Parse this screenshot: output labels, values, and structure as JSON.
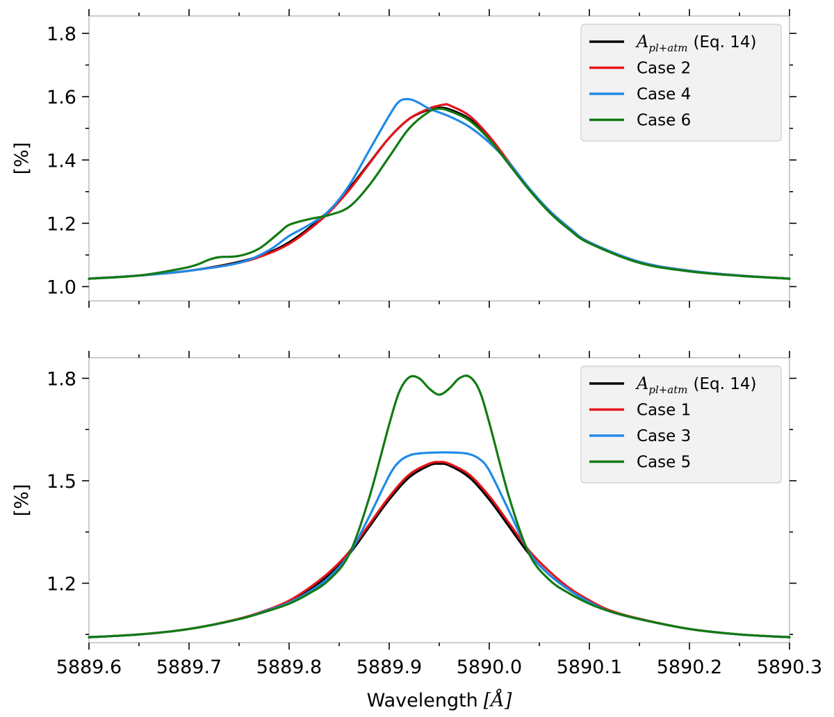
{
  "chart_data": [
    {
      "type": "line",
      "title": "",
      "xlabel": "",
      "ylabel": "[%]",
      "xlim": [
        5889.6,
        5890.3
      ],
      "ylim": [
        0.955,
        1.855
      ],
      "yticks": [
        1.0,
        1.2,
        1.4,
        1.6,
        1.8
      ],
      "ytick_labels": [
        "1.0",
        "1.2",
        "1.4",
        "1.6",
        "1.8"
      ],
      "legend": {
        "placement": "top-right"
      },
      "series": [
        {
          "name": "Eq. 14",
          "legend_math": "A",
          "legend_math_sub": "pl+atm",
          "legend_suffix": "(Eq. 14)",
          "color": "#000000",
          "x": [
            5889.6,
            5889.65,
            5889.7,
            5889.75,
            5889.78,
            5889.8,
            5889.82,
            5889.84,
            5889.86,
            5889.88,
            5889.9,
            5889.92,
            5889.94,
            5889.95,
            5889.96,
            5889.98,
            5890.0,
            5890.02,
            5890.04,
            5890.06,
            5890.08,
            5890.1,
            5890.15,
            5890.2,
            5890.25,
            5890.3
          ],
          "y": [
            1.025,
            1.035,
            1.05,
            1.078,
            1.108,
            1.14,
            1.185,
            1.24,
            1.31,
            1.39,
            1.47,
            1.53,
            1.56,
            1.565,
            1.56,
            1.53,
            1.47,
            1.39,
            1.31,
            1.24,
            1.185,
            1.14,
            1.078,
            1.05,
            1.035,
            1.025
          ]
        },
        {
          "name": "Case 2",
          "color": "#e6151a",
          "x": [
            5889.6,
            5889.65,
            5889.7,
            5889.75,
            5889.78,
            5889.8,
            5889.82,
            5889.84,
            5889.86,
            5889.88,
            5889.9,
            5889.92,
            5889.94,
            5889.95,
            5889.955,
            5889.96,
            5889.98,
            5890.0,
            5890.02,
            5890.04,
            5890.06,
            5890.08,
            5890.1,
            5890.15,
            5890.2,
            5890.25,
            5890.3
          ],
          "y": [
            1.025,
            1.035,
            1.05,
            1.075,
            1.105,
            1.135,
            1.18,
            1.235,
            1.305,
            1.388,
            1.47,
            1.53,
            1.563,
            1.572,
            1.575,
            1.573,
            1.54,
            1.475,
            1.392,
            1.31,
            1.24,
            1.185,
            1.14,
            1.078,
            1.05,
            1.035,
            1.025
          ]
        },
        {
          "name": "Case 4",
          "color": "#1f8be8",
          "x": [
            5889.6,
            5889.65,
            5889.7,
            5889.75,
            5889.78,
            5889.8,
            5889.82,
            5889.84,
            5889.86,
            5889.88,
            5889.9,
            5889.91,
            5889.92,
            5889.93,
            5889.94,
            5889.96,
            5889.98,
            5890.0,
            5890.02,
            5890.04,
            5890.06,
            5890.08,
            5890.1,
            5890.15,
            5890.2,
            5890.25,
            5890.3
          ],
          "y": [
            1.025,
            1.035,
            1.05,
            1.075,
            1.115,
            1.16,
            1.195,
            1.24,
            1.32,
            1.43,
            1.54,
            1.585,
            1.592,
            1.58,
            1.562,
            1.538,
            1.505,
            1.455,
            1.39,
            1.31,
            1.24,
            1.185,
            1.14,
            1.078,
            1.05,
            1.035,
            1.025
          ]
        },
        {
          "name": "Case 6",
          "color": "#127a12",
          "x": [
            5889.6,
            5889.65,
            5889.7,
            5889.72,
            5889.73,
            5889.75,
            5889.77,
            5889.79,
            5889.8,
            5889.82,
            5889.84,
            5889.86,
            5889.88,
            5889.9,
            5889.92,
            5889.94,
            5889.95,
            5889.96,
            5889.98,
            5890.0,
            5890.02,
            5890.04,
            5890.06,
            5890.08,
            5890.1,
            5890.15,
            5890.2,
            5890.25,
            5890.3
          ],
          "y": [
            1.025,
            1.035,
            1.062,
            1.085,
            1.093,
            1.097,
            1.12,
            1.17,
            1.195,
            1.213,
            1.226,
            1.252,
            1.32,
            1.41,
            1.5,
            1.553,
            1.562,
            1.555,
            1.525,
            1.465,
            1.385,
            1.305,
            1.235,
            1.18,
            1.137,
            1.075,
            1.048,
            1.034,
            1.025
          ]
        }
      ]
    },
    {
      "type": "line",
      "title": "",
      "xlabel": "Wavelength",
      "xlabel_unit": "[Å]",
      "ylabel": "[%]",
      "xlim": [
        5889.6,
        5890.3
      ],
      "ylim": [
        1.026,
        1.86
      ],
      "yticks": [
        1.2,
        1.5,
        1.8
      ],
      "ytick_labels": [
        "1.2",
        "1.5",
        "1.8"
      ],
      "xticks": [
        5889.6,
        5889.7,
        5889.8,
        5889.9,
        5890.0,
        5890.1,
        5890.2,
        5890.3
      ],
      "xtick_labels": [
        "5889.6",
        "5889.7",
        "5889.8",
        "5889.9",
        "5890.0",
        "5890.1",
        "5890.2",
        "5890.3"
      ],
      "legend": {
        "placement": "top-right"
      },
      "series": [
        {
          "name": "Eq. 14",
          "legend_math": "A",
          "legend_math_sub": "pl+atm",
          "legend_suffix": "(Eq. 14)",
          "color": "#000000",
          "x": [
            5889.6,
            5889.65,
            5889.7,
            5889.75,
            5889.78,
            5889.8,
            5889.82,
            5889.84,
            5889.86,
            5889.88,
            5889.9,
            5889.92,
            5889.94,
            5889.95,
            5889.96,
            5889.98,
            5890.0,
            5890.02,
            5890.04,
            5890.06,
            5890.08,
            5890.1,
            5890.12,
            5890.15,
            5890.2,
            5890.25,
            5890.3
          ],
          "y": [
            1.042,
            1.05,
            1.066,
            1.095,
            1.122,
            1.145,
            1.18,
            1.225,
            1.285,
            1.365,
            1.445,
            1.51,
            1.545,
            1.55,
            1.545,
            1.51,
            1.445,
            1.365,
            1.285,
            1.225,
            1.18,
            1.145,
            1.118,
            1.095,
            1.066,
            1.05,
            1.042
          ]
        },
        {
          "name": "Case 1",
          "color": "#e6151a",
          "x": [
            5889.6,
            5889.65,
            5889.7,
            5889.75,
            5889.78,
            5889.8,
            5889.82,
            5889.84,
            5889.86,
            5889.88,
            5889.9,
            5889.92,
            5889.94,
            5889.95,
            5889.96,
            5889.98,
            5890.0,
            5890.02,
            5890.04,
            5890.06,
            5890.08,
            5890.1,
            5890.12,
            5890.15,
            5890.2,
            5890.25,
            5890.3
          ],
          "y": [
            1.042,
            1.05,
            1.066,
            1.096,
            1.124,
            1.149,
            1.186,
            1.232,
            1.292,
            1.372,
            1.453,
            1.518,
            1.55,
            1.555,
            1.55,
            1.518,
            1.455,
            1.375,
            1.295,
            1.235,
            1.186,
            1.15,
            1.121,
            1.096,
            1.066,
            1.05,
            1.042
          ]
        },
        {
          "name": "Case 3",
          "color": "#1f8be8",
          "x": [
            5889.6,
            5889.65,
            5889.7,
            5889.75,
            5889.78,
            5889.8,
            5889.82,
            5889.84,
            5889.86,
            5889.88,
            5889.9,
            5889.91,
            5889.92,
            5889.93,
            5889.95,
            5889.97,
            5889.98,
            5889.99,
            5890.0,
            5890.02,
            5890.04,
            5890.06,
            5890.08,
            5890.1,
            5890.12,
            5890.15,
            5890.2,
            5890.25,
            5890.3
          ],
          "y": [
            1.042,
            1.05,
            1.066,
            1.095,
            1.122,
            1.143,
            1.175,
            1.218,
            1.285,
            1.395,
            1.515,
            1.556,
            1.574,
            1.58,
            1.583,
            1.582,
            1.578,
            1.564,
            1.53,
            1.41,
            1.29,
            1.225,
            1.18,
            1.145,
            1.118,
            1.095,
            1.066,
            1.05,
            1.042
          ]
        },
        {
          "name": "Case 5",
          "color": "#127a12",
          "x": [
            5889.6,
            5889.65,
            5889.7,
            5889.75,
            5889.78,
            5889.8,
            5889.82,
            5889.84,
            5889.86,
            5889.88,
            5889.9,
            5889.91,
            5889.92,
            5889.93,
            5889.94,
            5889.95,
            5889.96,
            5889.97,
            5889.98,
            5889.99,
            5890.0,
            5890.02,
            5890.04,
            5890.06,
            5890.08,
            5890.1,
            5890.12,
            5890.15,
            5890.2,
            5890.25,
            5890.3
          ],
          "y": [
            1.042,
            1.05,
            1.066,
            1.095,
            1.12,
            1.14,
            1.17,
            1.21,
            1.285,
            1.45,
            1.665,
            1.76,
            1.803,
            1.8,
            1.77,
            1.752,
            1.77,
            1.8,
            1.805,
            1.765,
            1.67,
            1.45,
            1.285,
            1.21,
            1.17,
            1.14,
            1.118,
            1.095,
            1.066,
            1.05,
            1.042
          ]
        }
      ]
    }
  ]
}
